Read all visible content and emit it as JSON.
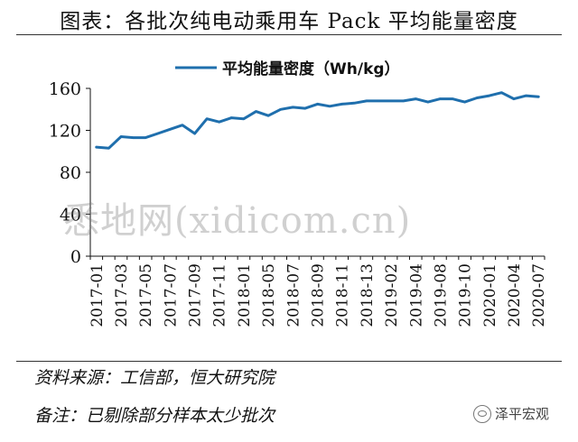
{
  "title": "图表：各批次纯电动乘用车 Pack 平均能量密度",
  "footer": {
    "source": "资料来源：工信部，恒大研究院",
    "note": "备注：已剔除部分样本太少批次"
  },
  "watermark": "悉地网(xidicom.cn)",
  "logo": "泽平宏观",
  "colors": {
    "line": "#1f6fad"
  },
  "chart_data": {
    "type": "line",
    "legend": "top",
    "grid": false,
    "ylim": [
      0,
      160
    ],
    "yticks": [
      0,
      40,
      80,
      120,
      160
    ],
    "tick_labels": [
      "2017-01",
      "2017-03",
      "2017-05",
      "2017-07",
      "2017-09",
      "2017-11",
      "2018-01",
      "2018-05",
      "2018-07",
      "2018-09",
      "2018-11",
      "2018-13",
      "2019-02",
      "2019-04",
      "2019-08",
      "2019-10",
      "2020-01",
      "2020-04",
      "2020-07"
    ],
    "series": [
      {
        "name": "平均能量密度（Wh/kg）",
        "values": [
          104,
          103,
          114,
          113,
          113,
          117,
          121,
          125,
          117,
          131,
          128,
          132,
          131,
          138,
          134,
          140,
          142,
          141,
          145,
          143,
          145,
          146,
          148,
          148,
          148,
          148,
          150,
          147,
          150,
          150,
          147,
          151,
          153,
          156,
          150,
          153,
          152
        ]
      }
    ]
  }
}
